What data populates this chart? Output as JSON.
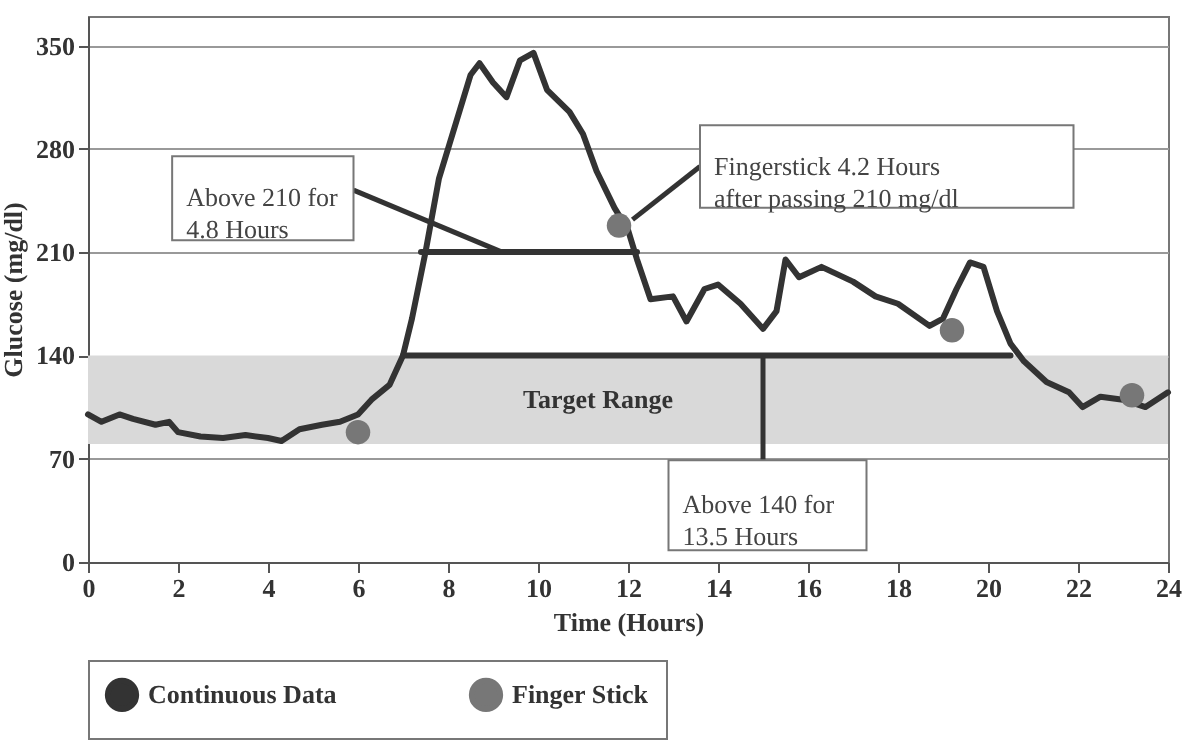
{
  "chart_data": {
    "type": "line",
    "xlabel": "Time (Hours)",
    "ylabel": "Glucose (mg/dl)",
    "xlim": [
      0,
      24
    ],
    "xticks": [
      0,
      2,
      4,
      6,
      8,
      10,
      12,
      14,
      16,
      18,
      20,
      22,
      24
    ],
    "ylim": [
      0,
      370
    ],
    "yticks": [
      0,
      70,
      140,
      210,
      280,
      350
    ],
    "grid": "y",
    "legend": "bottom",
    "series": [
      {
        "name": "Continuous Data",
        "color": "#333333",
        "x": [
          0,
          0.3,
          0.7,
          1.0,
          1.5,
          1.8,
          2.0,
          2.5,
          3.0,
          3.5,
          4.0,
          4.3,
          4.7,
          5.2,
          5.6,
          6.0,
          6.3,
          6.7,
          7.0,
          7.2,
          7.5,
          7.8,
          8.2,
          8.5,
          8.7,
          9.0,
          9.3,
          9.6,
          9.9,
          10.2,
          10.7,
          11.0,
          11.3,
          11.7,
          12.0,
          12.2,
          12.5,
          13.0,
          13.3,
          13.7,
          14.0,
          14.5,
          15.0,
          15.3,
          15.5,
          15.8,
          16.3,
          17.0,
          17.5,
          18.0,
          18.7,
          19.0,
          19.3,
          19.6,
          19.9,
          20.2,
          20.5,
          20.8,
          21.3,
          21.8,
          22.1,
          22.5,
          23.0,
          23.5,
          24.0
        ],
        "values": [
          100,
          95,
          100,
          97,
          93,
          95,
          88,
          85,
          84,
          86,
          84,
          82,
          90,
          93,
          95,
          100,
          110,
          120,
          140,
          165,
          210,
          260,
          300,
          330,
          338,
          325,
          315,
          340,
          345,
          320,
          305,
          290,
          265,
          240,
          225,
          205,
          178,
          180,
          163,
          185,
          188,
          175,
          158,
          170,
          205,
          193,
          200,
          190,
          180,
          175,
          160,
          165,
          185,
          203,
          200,
          170,
          148,
          136,
          122,
          115,
          105,
          112,
          110,
          105,
          115
        ]
      },
      {
        "type": "scatter",
        "name": "Finger Stick",
        "color": "#777777",
        "marker": "circle",
        "x": [
          6.0,
          11.8,
          19.2,
          23.2
        ],
        "values": [
          88,
          228,
          157,
          113
        ]
      },
      {
        "color": "#333333",
        "x": [
          7.4,
          12.2
        ],
        "values": [
          210,
          210
        ]
      },
      {
        "color": "#333333",
        "x": [
          7.0,
          20.5
        ],
        "values": [
          140,
          140
        ]
      }
    ],
    "bands": [
      {
        "axis": "y",
        "from": 80,
        "to": 140,
        "label": "Target Range",
        "color": "#d9d9d9"
      }
    ],
    "annotations": [
      {
        "text": "Above 210 for\n4.8 Hours",
        "x": 9.2,
        "y": 210
      },
      {
        "text": "Fingerstick 4.2 Hours\nafter passing 210 mg/dl",
        "x": 12.1,
        "y": 232
      },
      {
        "text": "Above 140 for\n13.5 Hours",
        "x": 15,
        "y": 140
      }
    ]
  }
}
